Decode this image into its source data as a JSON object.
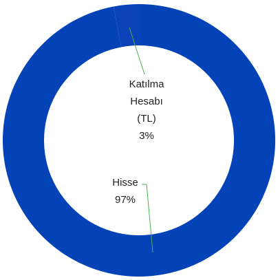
{
  "chart_data": {
    "type": "pie",
    "donut": true,
    "categories": [
      "Katılma Hesabı (TL)",
      "Hisse"
    ],
    "values": [
      3,
      97
    ],
    "value_labels": [
      "3%",
      "97%"
    ],
    "colors": [
      "#0a43b8",
      "#0442b7"
    ]
  }
}
